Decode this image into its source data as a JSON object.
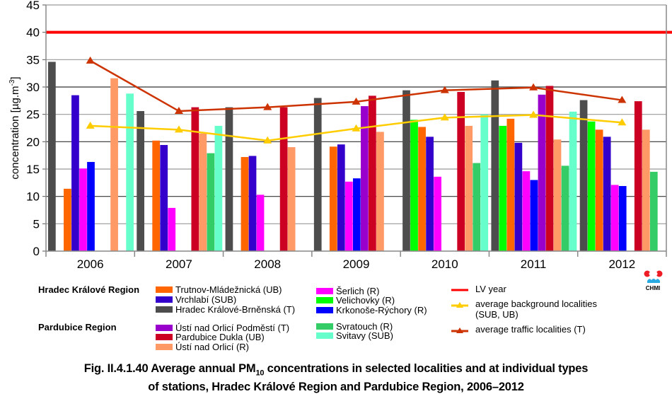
{
  "chart_data": {
    "type": "bar",
    "ylabel": "concentration [µg.m-3]",
    "ylabel_main": "concentration [µg.m",
    "ylabel_sup": "-3",
    "ylabel_end": "]",
    "ylim": [
      0,
      45
    ],
    "yticks": [
      "0",
      "5",
      "10",
      "15",
      "20",
      "25",
      "30",
      "35",
      "40",
      "45"
    ],
    "grid": true,
    "categories": [
      "2006",
      "2007",
      "2008",
      "2009",
      "2010",
      "2011",
      "2012"
    ],
    "series": [
      {
        "name": "Hradec Králové-Brněnská (T)",
        "color": "#4d4d4d",
        "values": [
          34.6,
          25.6,
          26.3,
          28.0,
          29.4,
          31.2,
          27.6
        ]
      },
      {
        "name": "Velichovky (R)",
        "color": "#00ff00",
        "values": [
          null,
          null,
          null,
          null,
          24.0,
          22.9,
          23.7
        ]
      },
      {
        "name": "Trutnov-Mládežnická (UB)",
        "color": "#ff6600",
        "values": [
          11.4,
          20.2,
          17.2,
          19.1,
          22.7,
          24.2,
          22.2
        ]
      },
      {
        "name": "Vrchlabí (SUB)",
        "color": "#3300cc",
        "values": [
          28.5,
          19.4,
          17.4,
          19.5,
          20.9,
          19.8,
          20.9
        ]
      },
      {
        "name": "Šerlich (R)",
        "color": "#ff00ff",
        "values": [
          15.1,
          7.9,
          10.3,
          12.7,
          13.6,
          14.6,
          12.1
        ]
      },
      {
        "name": "Krkonoše-Rýchory (R)",
        "color": "#0000ff",
        "values": [
          16.3,
          null,
          null,
          13.3,
          null,
          13.0,
          11.9
        ]
      },
      {
        "name": "Ústí nad Orlicí Podměstí (T)",
        "color": "#9900cc",
        "values": [
          null,
          null,
          null,
          26.5,
          null,
          28.6,
          null
        ]
      },
      {
        "name": "Pardubice Dukla (UB)",
        "color": "#cc0022",
        "values": [
          null,
          26.3,
          26.3,
          28.4,
          29.1,
          30.2,
          27.4
        ]
      },
      {
        "name": "Ústí nad Orlicí (R)",
        "color": "#ff9966",
        "values": [
          31.6,
          21.5,
          19.0,
          21.8,
          22.9,
          20.4,
          22.2
        ]
      },
      {
        "name": "Svratouch (R)",
        "color": "#33cc66",
        "values": [
          null,
          17.9,
          null,
          null,
          16.1,
          15.6,
          14.5
        ]
      },
      {
        "name": "Svitavy (SUB)",
        "color": "#66ffcc",
        "values": [
          28.8,
          22.9,
          null,
          null,
          25.0,
          25.5,
          null
        ]
      }
    ],
    "lines": [
      {
        "name": "LV year",
        "color": "#ff0000",
        "values": [
          40,
          40,
          40,
          40,
          40,
          40,
          40
        ],
        "marker": "none",
        "span": "full"
      },
      {
        "name": "average background localities (SUB, UB)",
        "color": "#ffcc00",
        "values": [
          22.9,
          22.2,
          20.2,
          22.4,
          24.4,
          24.9,
          23.5
        ],
        "marker": "triangle"
      },
      {
        "name": "average traffic localities  (T)",
        "color": "#cc3300",
        "values": [
          34.8,
          25.6,
          26.3,
          27.3,
          29.4,
          29.9,
          27.6
        ],
        "marker": "triangle"
      }
    ]
  },
  "legend": {
    "regions": [
      {
        "label": "Hradec Králové Region"
      },
      {
        "label": "Pardubice Region"
      }
    ],
    "items": [
      {
        "label": "Trutnov-Mládežnická (UB)",
        "color": "#ff6600"
      },
      {
        "label": "Vrchlabí (SUB)",
        "color": "#3300cc"
      },
      {
        "label": "Hradec Králové-Brněnská (T)",
        "color": "#4d4d4d"
      },
      {
        "label": "Ústí nad Orlicí Podměstí (T)",
        "color": "#9900cc"
      },
      {
        "label": "Pardubice Dukla (UB)",
        "color": "#cc0022"
      },
      {
        "label": "Ústí nad Orlicí (R)",
        "color": "#ff9966"
      },
      {
        "label": "Šerlich (R)",
        "color": "#ff00ff"
      },
      {
        "label": "Velichovky (R)",
        "color": "#00ff00"
      },
      {
        "label": "Krkonoše-Rýchory (R)",
        "color": "#0000ff"
      },
      {
        "label": "Svratouch (R)",
        "color": "#33cc66"
      },
      {
        "label": "Svitavy (SUB)",
        "color": "#66ffcc"
      }
    ],
    "line_items": [
      {
        "label": "LV year",
        "color": "#ff0000"
      },
      {
        "label": "average background localities",
        "label2": "(SUB, UB)",
        "color": "#ffcc00"
      },
      {
        "label": "average traffic localities  (T)",
        "color": "#cc3300"
      }
    ]
  },
  "logo": {
    "text": "CHMI"
  },
  "caption": {
    "prefix": "Fig. II.4.1.40  Average annual PM",
    "subscript": "10",
    "suffix": " concentrations in selected localities and at individual types",
    "line2": "of stations, Hradec Králové Region and Pardubice Region, 2006–2012"
  }
}
